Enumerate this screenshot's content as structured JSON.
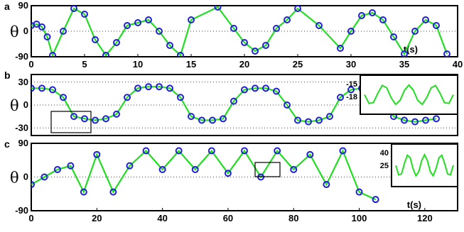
{
  "chart_data": [
    {
      "panel": "a",
      "type": "scatter",
      "xlabel": "t(s)",
      "ylabel": "θ",
      "xlim": [
        0,
        40
      ],
      "ylim": [
        -90,
        90
      ],
      "xticks": [
        "0",
        "5",
        "10",
        "15",
        "20",
        "25",
        "30",
        "35",
        "40"
      ],
      "yticks": [
        "90",
        "0",
        "-90"
      ],
      "grid": "horizontal dotted",
      "series": [
        {
          "marker": "open circles",
          "color": "#1f1fd6",
          "x": [
            0.0,
            0.5,
            1.0,
            1.5,
            2.0,
            3.0,
            4.0,
            5.0,
            6.0,
            7.0,
            8.0,
            9.0,
            10.0,
            11.0,
            12.0,
            13.0,
            14.0,
            15.0,
            17.5,
            19.0,
            20.0,
            21.0,
            22.0,
            23.0,
            24.0,
            25.0,
            27.0,
            29.0,
            30.0,
            31.0,
            32.0,
            33.0,
            34.0,
            35.0,
            36.0,
            37.0,
            38.0,
            39.0
          ],
          "y": [
            20,
            25,
            15,
            -20,
            -85,
            0,
            80,
            60,
            -30,
            -85,
            -40,
            20,
            30,
            40,
            0,
            -50,
            -85,
            40,
            85,
            10,
            -40,
            -70,
            -50,
            10,
            40,
            80,
            20,
            -60,
            0,
            55,
            65,
            40,
            -20,
            -80,
            0,
            40,
            20,
            -80
          ]
        }
      ]
    },
    {
      "panel": "b",
      "type": "scatter",
      "xlabel": "",
      "ylabel": "θ",
      "xlim": [
        0,
        40
      ],
      "ylim": [
        -40,
        40
      ],
      "yticks": [
        "30",
        "0",
        "-30"
      ],
      "grid": "horizontal dotted",
      "series": [
        {
          "marker": "open circles",
          "color": "#1f1fd6",
          "x": [
            0,
            1,
            2,
            3,
            4,
            5,
            6,
            7,
            8,
            9,
            10,
            11,
            12,
            13,
            14,
            15,
            16,
            17,
            18,
            19,
            20,
            21,
            22,
            23,
            24,
            25,
            26,
            27,
            28,
            29,
            30,
            31,
            32,
            33,
            34,
            35,
            36,
            37,
            38
          ],
          "y": [
            22,
            22,
            20,
            10,
            -15,
            -18,
            -20,
            -18,
            -12,
            10,
            22,
            24,
            24,
            22,
            10,
            -15,
            -20,
            -20,
            -18,
            5,
            20,
            22,
            22,
            18,
            0,
            -20,
            -22,
            -20,
            -15,
            10,
            20,
            22,
            20,
            5,
            -15,
            -20,
            -22,
            -20,
            -18
          ]
        }
      ],
      "inset": {
        "yticks": [
          "-15",
          "-18"
        ]
      }
    },
    {
      "panel": "c",
      "type": "scatter",
      "xlabel": "t(s)",
      "ylabel": "θ",
      "xlim": [
        0,
        130
      ],
      "ylim": [
        -90,
        90
      ],
      "xticks": [
        "0",
        "20",
        "40",
        "60",
        "80",
        "100",
        "120"
      ],
      "yticks": [
        "90",
        "0",
        "-90"
      ],
      "grid": "horizontal dotted",
      "series": [
        {
          "marker": "open circles",
          "color": "#1f1fd6",
          "x": [
            0,
            4,
            8,
            12,
            16,
            20,
            25,
            30,
            35,
            40,
            45,
            50,
            55,
            60,
            65,
            70,
            75,
            80,
            85,
            90,
            95,
            100,
            105
          ],
          "y": [
            -20,
            0,
            20,
            30,
            -40,
            60,
            -40,
            30,
            70,
            20,
            70,
            20,
            70,
            10,
            70,
            0,
            70,
            20,
            60,
            -20,
            70,
            -40,
            -60
          ]
        }
      ],
      "inset": {
        "yticks": [
          "40",
          "25"
        ]
      }
    }
  ]
}
